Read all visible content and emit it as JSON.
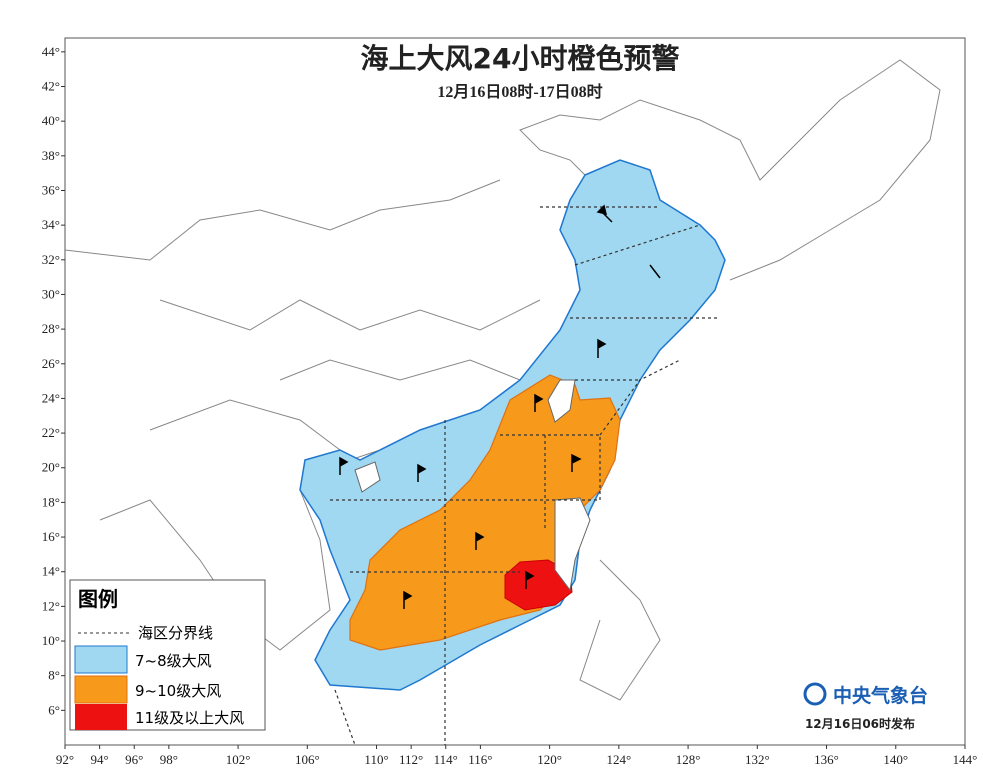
{
  "title": "海上大风24小时橙色预警",
  "subtitle": "12月16日08时-17日08时",
  "axes": {
    "lonlim": [
      92,
      144
    ],
    "latlim": [
      4,
      44.8
    ],
    "lat_ticks": [
      {
        "value": 44,
        "label": "44°"
      },
      {
        "value": 42,
        "label": "42°"
      },
      {
        "value": 40,
        "label": "40°"
      },
      {
        "value": 38,
        "label": "38°"
      },
      {
        "value": 36,
        "label": "36°"
      },
      {
        "value": 34,
        "label": "34°"
      },
      {
        "value": 32,
        "label": "32°"
      },
      {
        "value": 30,
        "label": "30°"
      },
      {
        "value": 28,
        "label": "28°"
      },
      {
        "value": 26,
        "label": "26°"
      },
      {
        "value": 24,
        "label": "24°"
      },
      {
        "value": 22,
        "label": "22°"
      },
      {
        "value": 20,
        "label": "20°"
      },
      {
        "value": 18,
        "label": "18°"
      },
      {
        "value": 16,
        "label": "16°"
      },
      {
        "value": 14,
        "label": "14°"
      },
      {
        "value": 12,
        "label": "12°"
      },
      {
        "value": 10,
        "label": "10°"
      },
      {
        "value": 8,
        "label": "8°"
      },
      {
        "value": 6,
        "label": "6°"
      }
    ],
    "lon_ticks": [
      {
        "value": 92,
        "label": "92°"
      },
      {
        "value": 94,
        "label": "94°"
      },
      {
        "value": 96,
        "label": "96°"
      },
      {
        "value": 98,
        "label": "98°"
      },
      {
        "value": 102,
        "label": "102°"
      },
      {
        "value": 106,
        "label": "106°"
      },
      {
        "value": 110,
        "label": "110°"
      },
      {
        "value": 112,
        "label": "112°"
      },
      {
        "value": 114,
        "label": "114°"
      },
      {
        "value": 116,
        "label": "116°"
      },
      {
        "value": 120,
        "label": "120°"
      },
      {
        "value": 124,
        "label": "124°"
      },
      {
        "value": 128,
        "label": "128°"
      },
      {
        "value": 132,
        "label": "132°"
      },
      {
        "value": 136,
        "label": "136°"
      },
      {
        "value": 140,
        "label": "140°"
      },
      {
        "value": 144,
        "label": "144°"
      }
    ]
  },
  "legend": {
    "title": "图例",
    "items": [
      "海区分界线",
      "7~8级大风",
      "9~10级大风",
      "11级及以上大风"
    ]
  },
  "footer": {
    "org": "中央气象台",
    "issued": "12月16日06时发布"
  }
}
